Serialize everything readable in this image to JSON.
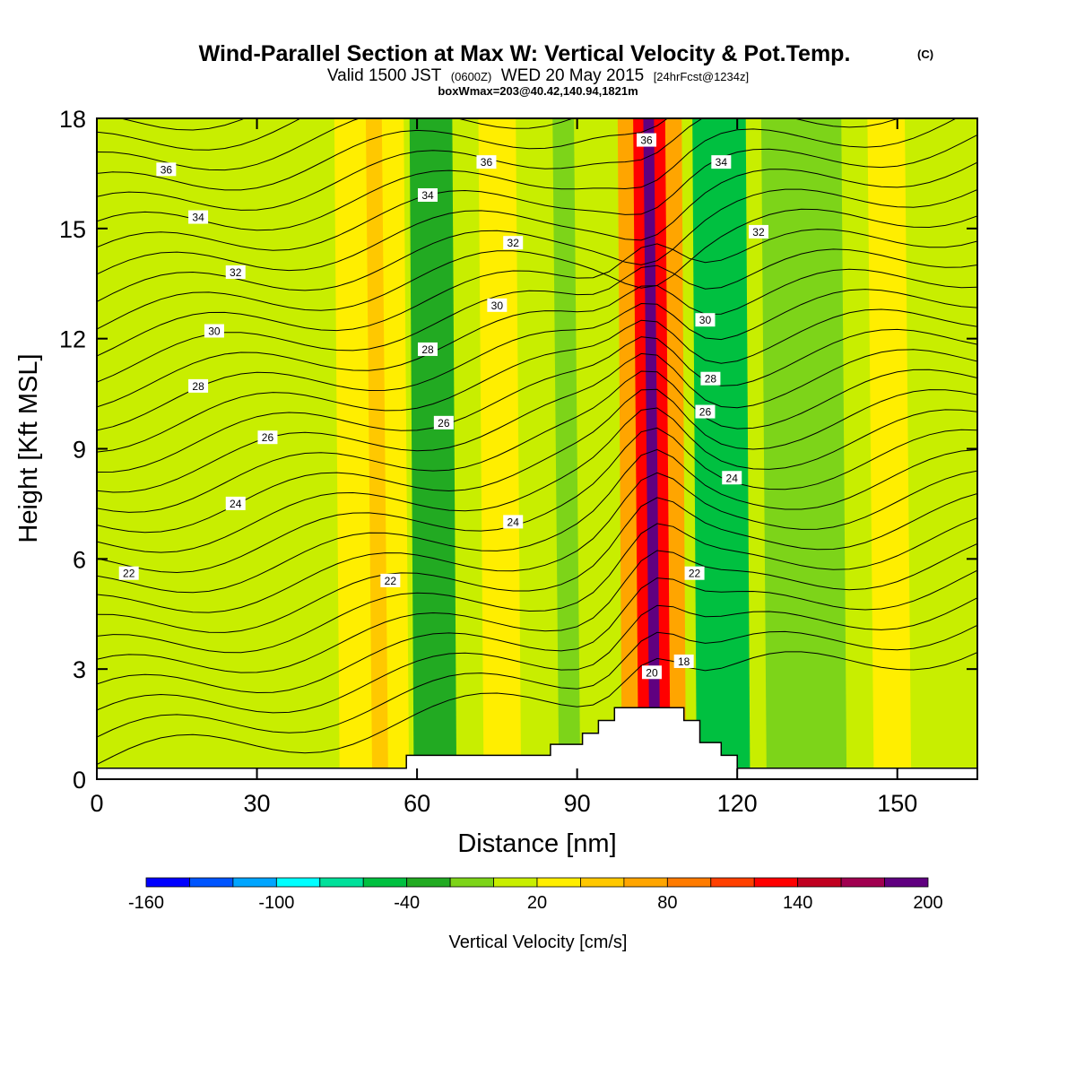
{
  "chart_data": {
    "type": "heatmap",
    "title": "Wind-Parallel Section at Max W: Vertical Velocity & Pot.Temp.",
    "title_mark": "(C)",
    "subtitle_main": "Valid 1500 JST",
    "subtitle_z": "(0600Z)",
    "subtitle_date": "WED 20 May 2015",
    "subtitle_fcst": "[24hrFcst@1234z]",
    "subtitle2": "boxWmax=203@40.42,140.94,1821m",
    "xlabel": "Distance [nm]",
    "ylabel": "Height [Kft MSL]",
    "xlim": [
      0,
      165
    ],
    "ylim": [
      0,
      18
    ],
    "x_ticks": [
      "0",
      "30",
      "60",
      "90",
      "120",
      "150"
    ],
    "y_ticks": [
      "0",
      "3",
      "6",
      "9",
      "12",
      "15",
      "18"
    ],
    "colorbar": {
      "label": "Vertical Velocity [cm/s]",
      "tick_labels": [
        "-160",
        "-100",
        "-40",
        "20",
        "80",
        "140",
        "200"
      ],
      "tick_values": [
        -160,
        -100,
        -40,
        20,
        80,
        140,
        200
      ],
      "bounds": [
        -160,
        -140,
        -120,
        -100,
        -80,
        -60,
        -40,
        -20,
        0,
        20,
        40,
        60,
        80,
        100,
        120,
        140,
        160,
        180,
        200
      ],
      "colors": [
        "#0000ff",
        "#0055ff",
        "#00a5ff",
        "#00ffff",
        "#00e09a",
        "#00c040",
        "#22aa22",
        "#7dd419",
        "#c8ee00",
        "#ffee00",
        "#ffc800",
        "#ffa500",
        "#ff7b00",
        "#ff4000",
        "#ff0000",
        "#c00020",
        "#a00050",
        "#600080"
      ]
    },
    "velocity_bands": [
      {
        "x_range": [
          0,
          45
        ],
        "value_cm_s": 10
      },
      {
        "x_range": [
          45,
          58
        ],
        "value_cm_s": 30
      },
      {
        "x_range": [
          51,
          54
        ],
        "value_cm_s": 50
      },
      {
        "x_range": [
          59,
          67
        ],
        "value_cm_s": -30
      },
      {
        "x_range": [
          72,
          79
        ],
        "value_cm_s": 30
      },
      {
        "x_range": [
          86,
          90
        ],
        "value_cm_s": -10
      },
      {
        "x_range": [
          98,
          110
        ],
        "value_cm_s": 60
      },
      {
        "x_range": [
          101,
          107
        ],
        "value_cm_s": 130
      },
      {
        "x_range": [
          103,
          105
        ],
        "value_cm_s": 200
      },
      {
        "x_range": [
          112,
          122
        ],
        "value_cm_s": -50
      },
      {
        "x_range": [
          125,
          140
        ],
        "value_cm_s": -10
      },
      {
        "x_range": [
          145,
          152
        ],
        "value_cm_s": 30
      }
    ],
    "theta_contour_labels": [
      "18",
      "20",
      "22",
      "22",
      "22",
      "24",
      "24",
      "24",
      "26",
      "26",
      "26",
      "28",
      "28",
      "28",
      "30",
      "30",
      "30",
      "32",
      "32",
      "32",
      "34",
      "34",
      "34",
      "36",
      "36",
      "36"
    ],
    "theta_contour_label_points": [
      {
        "text": "22",
        "x": 6,
        "y": 5.6
      },
      {
        "text": "24",
        "x": 26,
        "y": 7.5
      },
      {
        "text": "26",
        "x": 32,
        "y": 9.3
      },
      {
        "text": "28",
        "x": 19,
        "y": 10.7
      },
      {
        "text": "30",
        "x": 22,
        "y": 12.2
      },
      {
        "text": "32",
        "x": 26,
        "y": 13.8
      },
      {
        "text": "34",
        "x": 19,
        "y": 15.3
      },
      {
        "text": "36",
        "x": 13,
        "y": 16.6
      },
      {
        "text": "22",
        "x": 55,
        "y": 5.4
      },
      {
        "text": "26",
        "x": 65,
        "y": 9.7
      },
      {
        "text": "28",
        "x": 62,
        "y": 11.7
      },
      {
        "text": "34",
        "x": 62,
        "y": 15.9
      },
      {
        "text": "36",
        "x": 73,
        "y": 16.8
      },
      {
        "text": "32",
        "x": 78,
        "y": 14.6
      },
      {
        "text": "30",
        "x": 75,
        "y": 12.9
      },
      {
        "text": "24",
        "x": 78,
        "y": 7.0
      },
      {
        "text": "36",
        "x": 103,
        "y": 17.4
      },
      {
        "text": "20",
        "x": 104,
        "y": 2.9
      },
      {
        "text": "18",
        "x": 110,
        "y": 3.2
      },
      {
        "text": "22",
        "x": 112,
        "y": 5.6
      },
      {
        "text": "24",
        "x": 119,
        "y": 8.2
      },
      {
        "text": "26",
        "x": 114,
        "y": 10.0
      },
      {
        "text": "28",
        "x": 115,
        "y": 10.9
      },
      {
        "text": "30",
        "x": 114,
        "y": 12.5
      },
      {
        "text": "32",
        "x": 124,
        "y": 14.9
      },
      {
        "text": "34",
        "x": 117,
        "y": 16.8
      }
    ],
    "terrain_profile_kft": [
      [
        0,
        0.3
      ],
      [
        58,
        0.3
      ],
      [
        58,
        0.65
      ],
      [
        85,
        0.65
      ],
      [
        85,
        0.95
      ],
      [
        91,
        0.95
      ],
      [
        91,
        1.25
      ],
      [
        94,
        1.25
      ],
      [
        94,
        1.6
      ],
      [
        97,
        1.6
      ],
      [
        97,
        1.95
      ],
      [
        110,
        1.95
      ],
      [
        110,
        1.6
      ],
      [
        113,
        1.6
      ],
      [
        113,
        1.0
      ],
      [
        117,
        1.0
      ],
      [
        117,
        0.65
      ],
      [
        120,
        0.65
      ],
      [
        120,
        0.3
      ],
      [
        165,
        0.3
      ]
    ]
  }
}
